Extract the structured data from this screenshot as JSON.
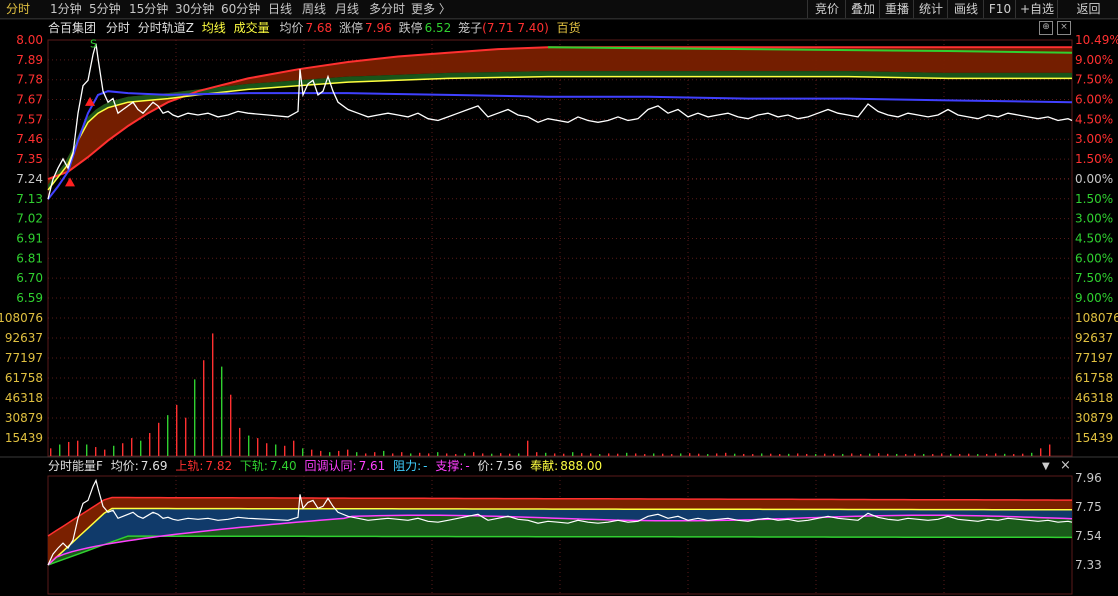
{
  "tabs": [
    {
      "label": "分时",
      "active": true
    },
    {
      "label": "1分钟"
    },
    {
      "label": "5分钟"
    },
    {
      "label": "15分钟"
    },
    {
      "label": "30分钟"
    },
    {
      "label": "60分钟"
    },
    {
      "label": "日线"
    },
    {
      "label": "周线"
    },
    {
      "label": "月线"
    },
    {
      "label": "多分时"
    },
    {
      "label": "更多 〉"
    }
  ],
  "toolbar_right": [
    "竞价",
    "叠加",
    "重播",
    "统计",
    "画线",
    "F10",
    "+自选",
    "返回"
  ],
  "info": {
    "stock_name": "合百集团",
    "mode1": "分时",
    "mode2": "分时轨道Z",
    "avg_line_label": "均线",
    "volume_label": "成交量",
    "avg_price_label": "均价",
    "avg_price": "7.68",
    "limit_up_label": "涨停",
    "limit_up": "7.96",
    "limit_down_label": "跌停",
    "limit_down": "6.52",
    "cage_label": "笼子",
    "cage_open": "(",
    "cage_value": "7.71 7.40",
    "cage_close": ")",
    "sector": "百货"
  },
  "icons": {
    "plus": "⊕",
    "close": "×",
    "dropdown": "▼"
  },
  "lower": {
    "title": "分时能量F",
    "avg_label": "均价:",
    "avg": "7.69",
    "upper_label": "上轨:",
    "upper": "7.82",
    "lower_label": "下轨:",
    "lower": "7.40",
    "pullback_label": "回调认同:",
    "pullback": "7.61",
    "resist_label": "阻力:",
    "resist": "-",
    "support_label": "支撑:",
    "support": "-",
    "price_label": "价:",
    "price": "7.56",
    "contrib_label": "奉献:",
    "contrib": "888.00"
  },
  "colors": {
    "up": "#ff3030",
    "down": "#30d030",
    "avg": "#ffff40",
    "price": "#ffffff",
    "track_blue": "#4040ff",
    "label_gold": "#e0c040",
    "magenta": "#ff40ff",
    "cyan": "#40d0ff",
    "grid": "#5a1a1a"
  },
  "chart_data": {
    "type": "line",
    "price_axis_left": [
      "8.00",
      "7.89",
      "7.78",
      "7.67",
      "7.57",
      "7.46",
      "7.35",
      "7.24",
      "7.13",
      "7.02",
      "6.91",
      "6.81",
      "6.70",
      "6.59"
    ],
    "percent_axis_right": [
      "10.49%",
      "9.00%",
      "7.50%",
      "6.00%",
      "4.50%",
      "3.00%",
      "1.50%",
      "0.00%",
      "1.50%",
      "3.00%",
      "4.50%",
      "6.00%",
      "7.50%",
      "9.00%"
    ],
    "volume_axis": [
      "108076",
      "92637",
      "77197",
      "61758",
      "46318",
      "30879",
      "15439"
    ],
    "lower_axis": [
      "7.96",
      "7.75",
      "7.54",
      "7.33"
    ],
    "ylim": [
      6.59,
      8.0
    ],
    "markers": [
      {
        "label": "S",
        "color": "#30d030"
      }
    ],
    "price": [
      [
        0,
        7.13
      ],
      [
        5,
        7.24
      ],
      [
        10,
        7.3
      ],
      [
        15,
        7.35
      ],
      [
        20,
        7.3
      ],
      [
        25,
        7.38
      ],
      [
        30,
        7.6
      ],
      [
        35,
        7.75
      ],
      [
        40,
        7.78
      ],
      [
        45,
        7.92
      ],
      [
        48,
        7.98
      ],
      [
        50,
        7.9
      ],
      [
        55,
        7.72
      ],
      [
        60,
        7.66
      ],
      [
        65,
        7.68
      ],
      [
        70,
        7.6
      ],
      [
        75,
        7.62
      ],
      [
        80,
        7.64
      ],
      [
        85,
        7.66
      ],
      [
        90,
        7.62
      ],
      [
        95,
        7.6
      ],
      [
        100,
        7.63
      ],
      [
        105,
        7.66
      ],
      [
        110,
        7.64
      ],
      [
        115,
        7.6
      ],
      [
        120,
        7.61
      ],
      [
        125,
        7.59
      ],
      [
        130,
        7.58
      ],
      [
        140,
        7.6
      ],
      [
        150,
        7.59
      ],
      [
        160,
        7.6
      ],
      [
        170,
        7.58
      ],
      [
        180,
        7.59
      ],
      [
        190,
        7.61
      ],
      [
        200,
        7.6
      ],
      [
        220,
        7.59
      ],
      [
        240,
        7.58
      ],
      [
        250,
        7.61
      ],
      [
        252,
        7.84
      ],
      [
        255,
        7.7
      ],
      [
        260,
        7.76
      ],
      [
        265,
        7.78
      ],
      [
        270,
        7.7
      ],
      [
        275,
        7.72
      ],
      [
        280,
        7.8
      ],
      [
        285,
        7.72
      ],
      [
        290,
        7.66
      ],
      [
        300,
        7.62
      ],
      [
        310,
        7.6
      ],
      [
        320,
        7.58
      ],
      [
        330,
        7.59
      ],
      [
        340,
        7.6
      ],
      [
        350,
        7.59
      ],
      [
        360,
        7.58
      ],
      [
        370,
        7.6
      ],
      [
        380,
        7.57
      ],
      [
        390,
        7.56
      ],
      [
        400,
        7.58
      ],
      [
        410,
        7.6
      ],
      [
        420,
        7.62
      ],
      [
        430,
        7.64
      ],
      [
        440,
        7.58
      ],
      [
        450,
        7.6
      ],
      [
        460,
        7.62
      ],
      [
        470,
        7.59
      ],
      [
        480,
        7.58
      ],
      [
        490,
        7.55
      ],
      [
        500,
        7.57
      ],
      [
        510,
        7.56
      ],
      [
        520,
        7.55
      ],
      [
        530,
        7.58
      ],
      [
        540,
        7.56
      ],
      [
        550,
        7.55
      ],
      [
        560,
        7.56
      ],
      [
        570,
        7.58
      ],
      [
        580,
        7.56
      ],
      [
        590,
        7.57
      ],
      [
        600,
        7.62
      ],
      [
        610,
        7.64
      ],
      [
        620,
        7.6
      ],
      [
        630,
        7.62
      ],
      [
        640,
        7.58
      ],
      [
        650,
        7.6
      ],
      [
        660,
        7.58
      ],
      [
        670,
        7.59
      ],
      [
        680,
        7.6
      ],
      [
        690,
        7.58
      ],
      [
        700,
        7.57
      ],
      [
        710,
        7.59
      ],
      [
        720,
        7.6
      ],
      [
        730,
        7.58
      ],
      [
        740,
        7.59
      ],
      [
        750,
        7.57
      ],
      [
        760,
        7.58
      ],
      [
        770,
        7.6
      ],
      [
        780,
        7.62
      ],
      [
        790,
        7.6
      ],
      [
        800,
        7.59
      ],
      [
        810,
        7.58
      ],
      [
        820,
        7.65
      ],
      [
        830,
        7.61
      ],
      [
        840,
        7.59
      ],
      [
        850,
        7.58
      ],
      [
        860,
        7.6
      ],
      [
        870,
        7.59
      ],
      [
        880,
        7.58
      ],
      [
        890,
        7.59
      ],
      [
        900,
        7.62
      ],
      [
        910,
        7.59
      ],
      [
        920,
        7.58
      ],
      [
        930,
        7.57
      ],
      [
        940,
        7.59
      ],
      [
        950,
        7.58
      ],
      [
        960,
        7.6
      ],
      [
        970,
        7.59
      ],
      [
        980,
        7.58
      ],
      [
        990,
        7.57
      ],
      [
        1000,
        7.58
      ],
      [
        1010,
        7.56
      ],
      [
        1020,
        7.57
      ],
      [
        1024,
        7.56
      ]
    ],
    "avg": [
      [
        0,
        7.18
      ],
      [
        10,
        7.25
      ],
      [
        20,
        7.32
      ],
      [
        30,
        7.45
      ],
      [
        40,
        7.55
      ],
      [
        50,
        7.6
      ],
      [
        60,
        7.63
      ],
      [
        80,
        7.66
      ],
      [
        100,
        7.67
      ],
      [
        120,
        7.68
      ],
      [
        150,
        7.7
      ],
      [
        200,
        7.73
      ],
      [
        250,
        7.75
      ],
      [
        300,
        7.77
      ],
      [
        350,
        7.78
      ],
      [
        400,
        7.79
      ],
      [
        500,
        7.8
      ],
      [
        600,
        7.8
      ],
      [
        700,
        7.8
      ],
      [
        800,
        7.8
      ],
      [
        900,
        7.79
      ],
      [
        1024,
        7.79
      ]
    ],
    "track_blue": [
      [
        0,
        7.13
      ],
      [
        10,
        7.2
      ],
      [
        20,
        7.28
      ],
      [
        30,
        7.45
      ],
      [
        40,
        7.6
      ],
      [
        50,
        7.7
      ],
      [
        60,
        7.72
      ],
      [
        80,
        7.71
      ],
      [
        120,
        7.7
      ],
      [
        200,
        7.71
      ],
      [
        300,
        7.71
      ],
      [
        400,
        7.7
      ],
      [
        500,
        7.69
      ],
      [
        600,
        7.69
      ],
      [
        700,
        7.68
      ],
      [
        800,
        7.68
      ],
      [
        900,
        7.67
      ],
      [
        1024,
        7.66
      ]
    ],
    "track_red": [
      [
        0,
        7.24
      ],
      [
        20,
        7.28
      ],
      [
        40,
        7.36
      ],
      [
        60,
        7.45
      ],
      [
        80,
        7.53
      ],
      [
        100,
        7.6
      ],
      [
        120,
        7.66
      ],
      [
        150,
        7.72
      ],
      [
        200,
        7.79
      ],
      [
        250,
        7.84
      ],
      [
        300,
        7.88
      ],
      [
        350,
        7.91
      ],
      [
        400,
        7.93
      ],
      [
        450,
        7.95
      ],
      [
        500,
        7.96
      ],
      [
        1024,
        7.96
      ]
    ],
    "track_green": [
      [
        500,
        7.96
      ],
      [
        700,
        7.95
      ],
      [
        900,
        7.94
      ],
      [
        1024,
        7.93
      ]
    ],
    "volume": [
      6000,
      9000,
      11000,
      12000,
      9000,
      7000,
      5000,
      8000,
      10000,
      14000,
      12000,
      18000,
      26000,
      32000,
      40000,
      30000,
      60000,
      75000,
      96000,
      70000,
      48000,
      22000,
      16000,
      14000,
      10000,
      9000,
      8000,
      12000,
      6000,
      5000,
      4000,
      3000,
      4000,
      5000,
      3000,
      2000,
      3000,
      4000,
      2000,
      3000,
      2000,
      2500,
      2000,
      3000,
      2000,
      1500,
      2000,
      3000,
      2000,
      1800,
      2200,
      1800,
      2000,
      12000,
      3000,
      2500,
      2000,
      1800,
      3000,
      2200,
      2000,
      1500,
      2000,
      1800,
      2500,
      2000,
      1500,
      2000,
      1800,
      1500,
      2000,
      2200,
      1800,
      1500,
      2000,
      2500,
      1800,
      1600,
      1500,
      2000,
      1800,
      1500,
      1700,
      2000,
      1600,
      1500,
      1800,
      1700,
      1600,
      2000,
      1500,
      1800,
      2200,
      1700,
      1600,
      1500,
      1800,
      1600,
      1500,
      2000,
      1700,
      1600,
      1800,
      1500,
      1600,
      2000,
      1700,
      1500,
      1800,
      2500,
      6000,
      9000
    ]
  }
}
